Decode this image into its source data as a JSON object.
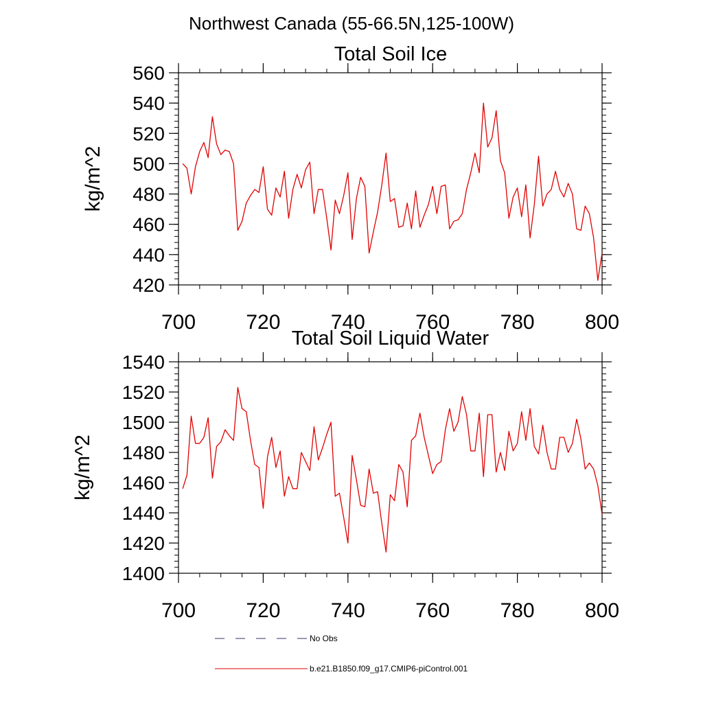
{
  "page_title": "Northwest Canada (55-66.5N,125-100W)",
  "legend": {
    "items": [
      {
        "label": "No Obs",
        "color": "#333366",
        "dash": true
      },
      {
        "label": "b.e21.B1850.f09_g17.CMIP6-piControl.001",
        "color": "#e00000",
        "dash": false
      }
    ]
  },
  "chart_data": [
    {
      "type": "line",
      "title": "Total Soil Ice",
      "ylabel": "kg/m^2",
      "xlabel": "",
      "xlim": [
        700,
        800
      ],
      "ylim": [
        420,
        560
      ],
      "xticks": [
        700,
        720,
        740,
        760,
        780,
        800
      ],
      "yticks": [
        420,
        440,
        460,
        480,
        500,
        520,
        540,
        560
      ],
      "x_start": 701,
      "color": "#e00000",
      "values": [
        500,
        497,
        480,
        498,
        508,
        514,
        504,
        531,
        513,
        506,
        509,
        508,
        500,
        456,
        462,
        474,
        479,
        483,
        481,
        498,
        470,
        466,
        484,
        478,
        495,
        464,
        483,
        493,
        484,
        496,
        501,
        467,
        483,
        483,
        464,
        443,
        476,
        467,
        479,
        494,
        450,
        477,
        491,
        485,
        441,
        455,
        468,
        486,
        507,
        475,
        477,
        458,
        459,
        474,
        457,
        482,
        458,
        466,
        473,
        485,
        467,
        485,
        486,
        457,
        462,
        463,
        467,
        483,
        494,
        507,
        494,
        540,
        511,
        517,
        535,
        502,
        494,
        464,
        478,
        484,
        465,
        486,
        451,
        473,
        505,
        472,
        480,
        483,
        495,
        483,
        478,
        487,
        480,
        457,
        456,
        472,
        467,
        451,
        423,
        441
      ]
    },
    {
      "type": "line",
      "title": "Total Soil Liquid Water",
      "ylabel": "kg/m^2",
      "xlabel": "",
      "xlim": [
        700,
        800
      ],
      "ylim": [
        1400,
        1540
      ],
      "xticks": [
        700,
        720,
        740,
        760,
        780,
        800
      ],
      "yticks": [
        1400,
        1420,
        1440,
        1460,
        1480,
        1500,
        1520,
        1540
      ],
      "x_start": 701,
      "color": "#e00000",
      "values": [
        1456,
        1465,
        1504,
        1486,
        1486,
        1490,
        1503,
        1463,
        1484,
        1487,
        1495,
        1491,
        1488,
        1523,
        1509,
        1507,
        1488,
        1472,
        1470,
        1443,
        1477,
        1490,
        1470,
        1481,
        1451,
        1464,
        1456,
        1456,
        1480,
        1474,
        1468,
        1497,
        1475,
        1483,
        1492,
        1500,
        1451,
        1453,
        1437,
        1420,
        1478,
        1462,
        1445,
        1444,
        1469,
        1453,
        1454,
        1433,
        1414,
        1452,
        1448,
        1472,
        1467,
        1444,
        1488,
        1491,
        1506,
        1490,
        1478,
        1466,
        1472,
        1474,
        1495,
        1509,
        1494,
        1500,
        1517,
        1505,
        1481,
        1481,
        1506,
        1464,
        1505,
        1505,
        1467,
        1480,
        1468,
        1494,
        1481,
        1486,
        1507,
        1488,
        1509,
        1484,
        1479,
        1498,
        1480,
        1469,
        1469,
        1490,
        1490,
        1480,
        1486,
        1502,
        1489,
        1469,
        1473,
        1469,
        1458,
        1439
      ]
    }
  ]
}
